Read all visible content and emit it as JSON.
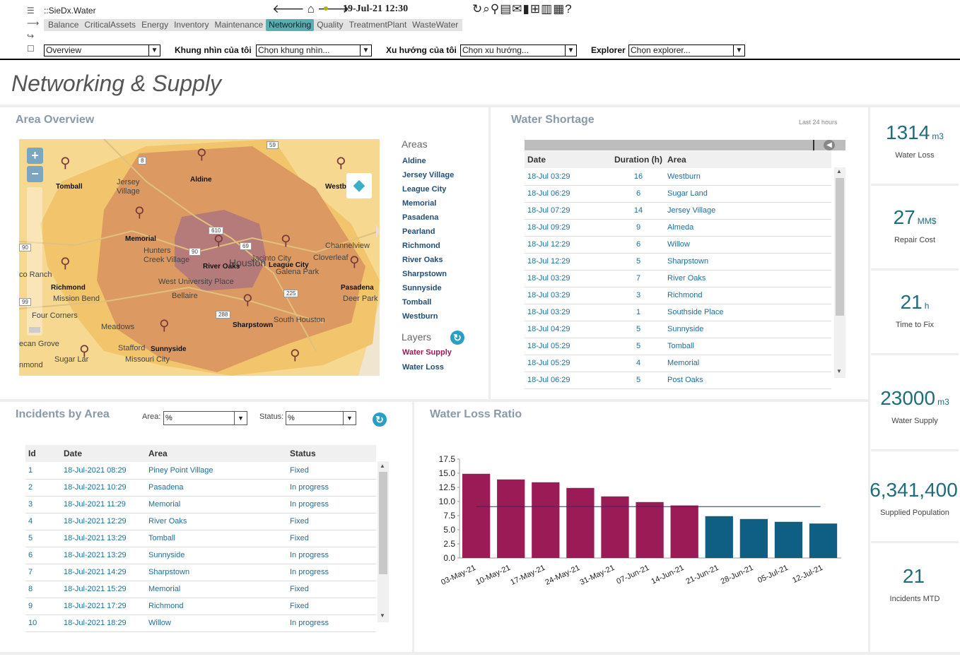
{
  "app": {
    "name": "::SieDx.Water",
    "datetime": "19-Jul-21 12:30"
  },
  "tabs": [
    "Balance",
    "CriticalAssets",
    "Energy",
    "Inventory",
    "Maintenance",
    "Networking",
    "Quality",
    "TreatmentPlant",
    "WasteWater"
  ],
  "active_tab": "Networking",
  "filters": {
    "view": {
      "value": "Overview"
    },
    "my_view": {
      "label": "Khung nhìn của tôi",
      "value": "Chọn khung nhìn..."
    },
    "my_trend": {
      "label": "Xu hướng của tôi",
      "value": "Chọn xu hướng..."
    },
    "explorer": {
      "label": "Explorer",
      "value": "Chọn explorer..."
    }
  },
  "page_title": "Networking & Supply",
  "area_overview": {
    "title": "Area Overview",
    "areas_title": "Areas",
    "areas": [
      "Aldine",
      "Jersey Village",
      "League City",
      "Memorial",
      "Pasadena",
      "Pearland",
      "Richmond",
      "River Oaks",
      "Sharpstown",
      "Sunnyside",
      "Tomball",
      "Westburn"
    ],
    "layers_title": "Layers",
    "layers": [
      "Water Supply",
      "Water Loss"
    ],
    "map_labels": [
      "Tomball",
      "Jersey Village",
      "Aldine",
      "Westb",
      "Memorial",
      "Hunters Creek Village",
      "River Oaks",
      "Houston",
      "Jacinto City",
      "League City",
      "Galena Park",
      "Cloverleaf",
      "Channelview",
      "co Ranch",
      "Richmond",
      "Mission Bend",
      "West University Place",
      "Bellaire",
      "Pasadena",
      "Deer Park",
      "Four Corners",
      "Meadows",
      "Sharpstown",
      "South Houston",
      "ecan Grove",
      "Stafford",
      "Sunnyside",
      "Missouri City",
      "Sugar Lar",
      "nmond"
    ],
    "road_shields": [
      "59",
      "8",
      "610",
      "69",
      "90",
      "90",
      "225",
      "288",
      "99"
    ]
  },
  "water_shortage": {
    "title": "Water Shortage",
    "period": "Last 24 hours",
    "columns": [
      "Date",
      "Duration (h)",
      "Area"
    ],
    "rows": [
      [
        "18-Jul 03:29",
        "16",
        "Westburn"
      ],
      [
        "18-Jul 06:29",
        "6",
        "Sugar Land"
      ],
      [
        "18-Jul 07:29",
        "14",
        "Jersey Village"
      ],
      [
        "18-Jul 09:29",
        "9",
        "Almeda"
      ],
      [
        "18-Jul 12:29",
        "6",
        "Willow"
      ],
      [
        "18-Jul 12:29",
        "5",
        "Sharpstown"
      ],
      [
        "18-Jul 03:29",
        "7",
        "River Oaks"
      ],
      [
        "18-Jul 03:29",
        "3",
        "Richmond"
      ],
      [
        "18-Jul 03:29",
        "1",
        "Southside Place"
      ],
      [
        "18-Jul 04:29",
        "5",
        "Sunnyside"
      ],
      [
        "18-Jul 05:29",
        "5",
        "Tomball"
      ],
      [
        "18-Jul 05:29",
        "4",
        "Memorial"
      ],
      [
        "18-Jul 06:29",
        "5",
        "Post Oaks"
      ]
    ]
  },
  "kpis": [
    {
      "value": "1314",
      "unit": "m3",
      "label": "Water Loss"
    },
    {
      "value": "27",
      "unit": "MM$",
      "label": "Repair Cost"
    },
    {
      "value": "21",
      "unit": "h",
      "label": "Time to Fix"
    },
    {
      "value": "23000",
      "unit": "m3",
      "label": "Water Supply"
    },
    {
      "value": "6,341,400",
      "unit": "",
      "label": "Supplied Population"
    },
    {
      "value": "21",
      "unit": "",
      "label": "Incidents MTD"
    }
  ],
  "incidents": {
    "title": "Incidents by Area",
    "area_filter": {
      "label": "Area:",
      "value": "%"
    },
    "status_filter": {
      "label": "Status:",
      "value": "%"
    },
    "columns": [
      "Id",
      "Date",
      "Area",
      "Status"
    ],
    "rows": [
      [
        "1",
        "18-Jul-2021 08:29",
        "Piney Point Village",
        "Fixed"
      ],
      [
        "2",
        "18-Jul-2021 10:29",
        "Pasadena",
        "In progress"
      ],
      [
        "3",
        "18-Jul-2021 11:29",
        "Memorial",
        "In progress"
      ],
      [
        "4",
        "18-Jul-2021 12:29",
        "River Oaks",
        "Fixed"
      ],
      [
        "5",
        "18-Jul-2021 13:29",
        "Tomball",
        "Fixed"
      ],
      [
        "6",
        "18-Jul-2021 13:29",
        "Sunnyside",
        "In progress"
      ],
      [
        "7",
        "18-Jul-2021 14:29",
        "Sharpstown",
        "In progress"
      ],
      [
        "8",
        "18-Jul-2021 15:29",
        "Memorial",
        "Fixed"
      ],
      [
        "9",
        "18-Jul-2021 17:29",
        "Richmond",
        "Fixed"
      ],
      [
        "10",
        "18-Jul-2021 18:29",
        "Willow",
        "In progress"
      ]
    ]
  },
  "chart_data": {
    "type": "bar",
    "title": "Water Loss Ratio",
    "categories": [
      "03-May-21",
      "10-May-21",
      "17-May-21",
      "24-May-21",
      "31-May-21",
      "07-Jun-21",
      "14-Jun-21",
      "21-Jun-21",
      "28-Jun-21",
      "05-Jul-21",
      "12-Jul-21"
    ],
    "values": [
      14.9,
      13.9,
      13.4,
      12.4,
      10.9,
      9.9,
      9.3,
      7.4,
      6.9,
      6.4,
      6.1
    ],
    "bar_colors": [
      "#9b1b57",
      "#9b1b57",
      "#9b1b57",
      "#9b1b57",
      "#9b1b57",
      "#9b1b57",
      "#9b1b57",
      "#0f5f85",
      "#0f5f85",
      "#0f5f85",
      "#0f5f85"
    ],
    "reference_line": 9.1,
    "reference_color": "#1f2f8a",
    "ylim": [
      0,
      17.5
    ],
    "yticks": [
      "17.5",
      "15.0",
      "12.5",
      "10.0",
      "7.5",
      "5.0",
      "2.5",
      "0.0"
    ],
    "xlabel": "",
    "ylabel": ""
  }
}
